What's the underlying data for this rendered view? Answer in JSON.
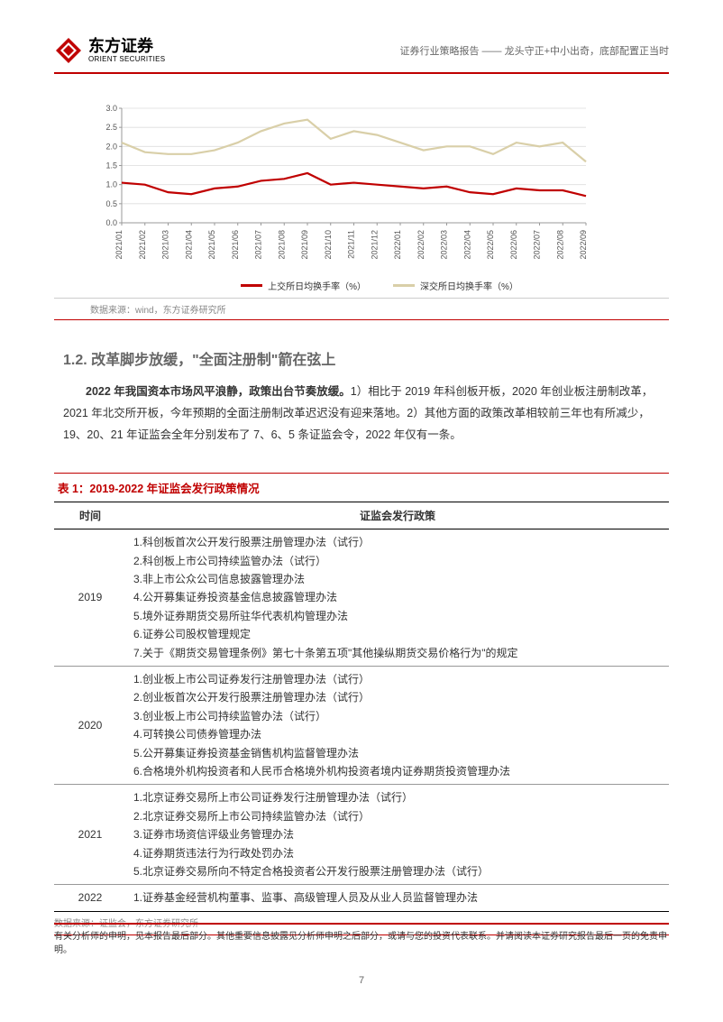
{
  "header": {
    "logo_cn": "东方证券",
    "logo_en": "ORIENT SECURITIES",
    "subtitle": "证券行业策略报告 —— 龙头守正+中小出奇，底部配置正当时"
  },
  "chart": {
    "type": "line",
    "title": "",
    "ylim": [
      0.0,
      3.0
    ],
    "ytick_step": 0.5,
    "yticks": [
      "0.0",
      "0.5",
      "1.0",
      "1.5",
      "2.0",
      "2.5",
      "3.0"
    ],
    "categories": [
      "2021/01",
      "2021/02",
      "2021/03",
      "2021/04",
      "2021/05",
      "2021/06",
      "2021/07",
      "2021/08",
      "2021/09",
      "2021/10",
      "2021/11",
      "2021/12",
      "2022/01",
      "2022/02",
      "2022/03",
      "2022/04",
      "2022/05",
      "2022/06",
      "2022/07",
      "2022/08",
      "2022/09"
    ],
    "series": [
      {
        "name": "上交所日均换手率（%）",
        "color": "#c00000",
        "width": 2.2,
        "values": [
          1.05,
          1.0,
          0.8,
          0.75,
          0.9,
          0.95,
          1.1,
          1.15,
          1.3,
          1.0,
          1.05,
          1.0,
          0.95,
          0.9,
          0.95,
          0.8,
          0.75,
          0.9,
          0.85,
          0.85,
          0.7
        ]
      },
      {
        "name": "深交所日均换手率（%）",
        "color": "#d9cfa8",
        "width": 2.2,
        "values": [
          2.1,
          1.85,
          1.8,
          1.8,
          1.9,
          2.1,
          2.4,
          2.6,
          2.7,
          2.2,
          2.4,
          2.3,
          2.1,
          1.9,
          2.0,
          2.0,
          1.8,
          2.1,
          2.0,
          2.1,
          1.6
        ]
      }
    ],
    "axis_color": "#999999",
    "grid_color": "#dddddd",
    "label_fontsize": 9,
    "background_color": "#ffffff"
  },
  "chart_source": "数据来源：wind，东方证券研究所",
  "section": {
    "number": "1.2.",
    "title": "改革脚步放缓，\"全面注册制\"箭在弦上"
  },
  "paragraph": {
    "bold": "2022 年我国资本市场风平浪静，政策出台节奏放缓。",
    "rest": "1）相比于 2019 年科创板开板，2020 年创业板注册制改革，2021 年北交所开板，今年预期的全面注册制改革迟迟没有迎来落地。2）其他方面的政策改革相较前三年也有所减少，19、20、21 年证监会全年分别发布了 7、6、5 条证监会令，2022 年仅有一条。"
  },
  "table": {
    "title": "表 1：2019-2022 年证监会发行政策情况",
    "columns": [
      "时间",
      "证监会发行政策"
    ],
    "rows": [
      {
        "year": "2019",
        "policies": [
          "1.科创板首次公开发行股票注册管理办法（试行）",
          "2.科创板上市公司持续监管办法（试行）",
          "3.非上市公众公司信息披露管理办法",
          "4.公开募集证券投资基金信息披露管理办法",
          "5.境外证券期货交易所驻华代表机构管理办法",
          "6.证券公司股权管理规定",
          "7.关于《期货交易管理条例》第七十条第五项\"其他操纵期货交易价格行为\"的规定"
        ]
      },
      {
        "year": "2020",
        "policies": [
          "1.创业板上市公司证券发行注册管理办法（试行）",
          "2.创业板首次公开发行股票注册管理办法（试行）",
          "3.创业板上市公司持续监管办法（试行）",
          "4.可转换公司债券管理办法",
          "5.公开募集证券投资基金销售机构监督管理办法",
          "6.合格境外机构投资者和人民币合格境外机构投资者境内证券期货投资管理办法"
        ]
      },
      {
        "year": "2021",
        "policies": [
          "1.北京证券交易所上市公司证券发行注册管理办法（试行）",
          "2.北京证券交易所上市公司持续监管办法（试行）",
          "3.证券市场资信评级业务管理办法",
          "4.证券期货违法行为行政处罚办法",
          "5.北京证券交易所向不特定合格投资者公开发行股票注册管理办法（试行）"
        ]
      },
      {
        "year": "2022",
        "policies": [
          "1.证券基金经营机构董事、监事、高级管理人员及从业人员监督管理办法"
        ]
      }
    ],
    "source": "数据来源：证监会，东方证券研究所"
  },
  "footer": {
    "disclaimer": "有关分析师的申明，见本报告最后部分。其他重要信息披露见分析师申明之后部分，或请与您的投资代表联系。并请阅读本证券研究报告最后一页的免责申明。",
    "page": "7"
  }
}
